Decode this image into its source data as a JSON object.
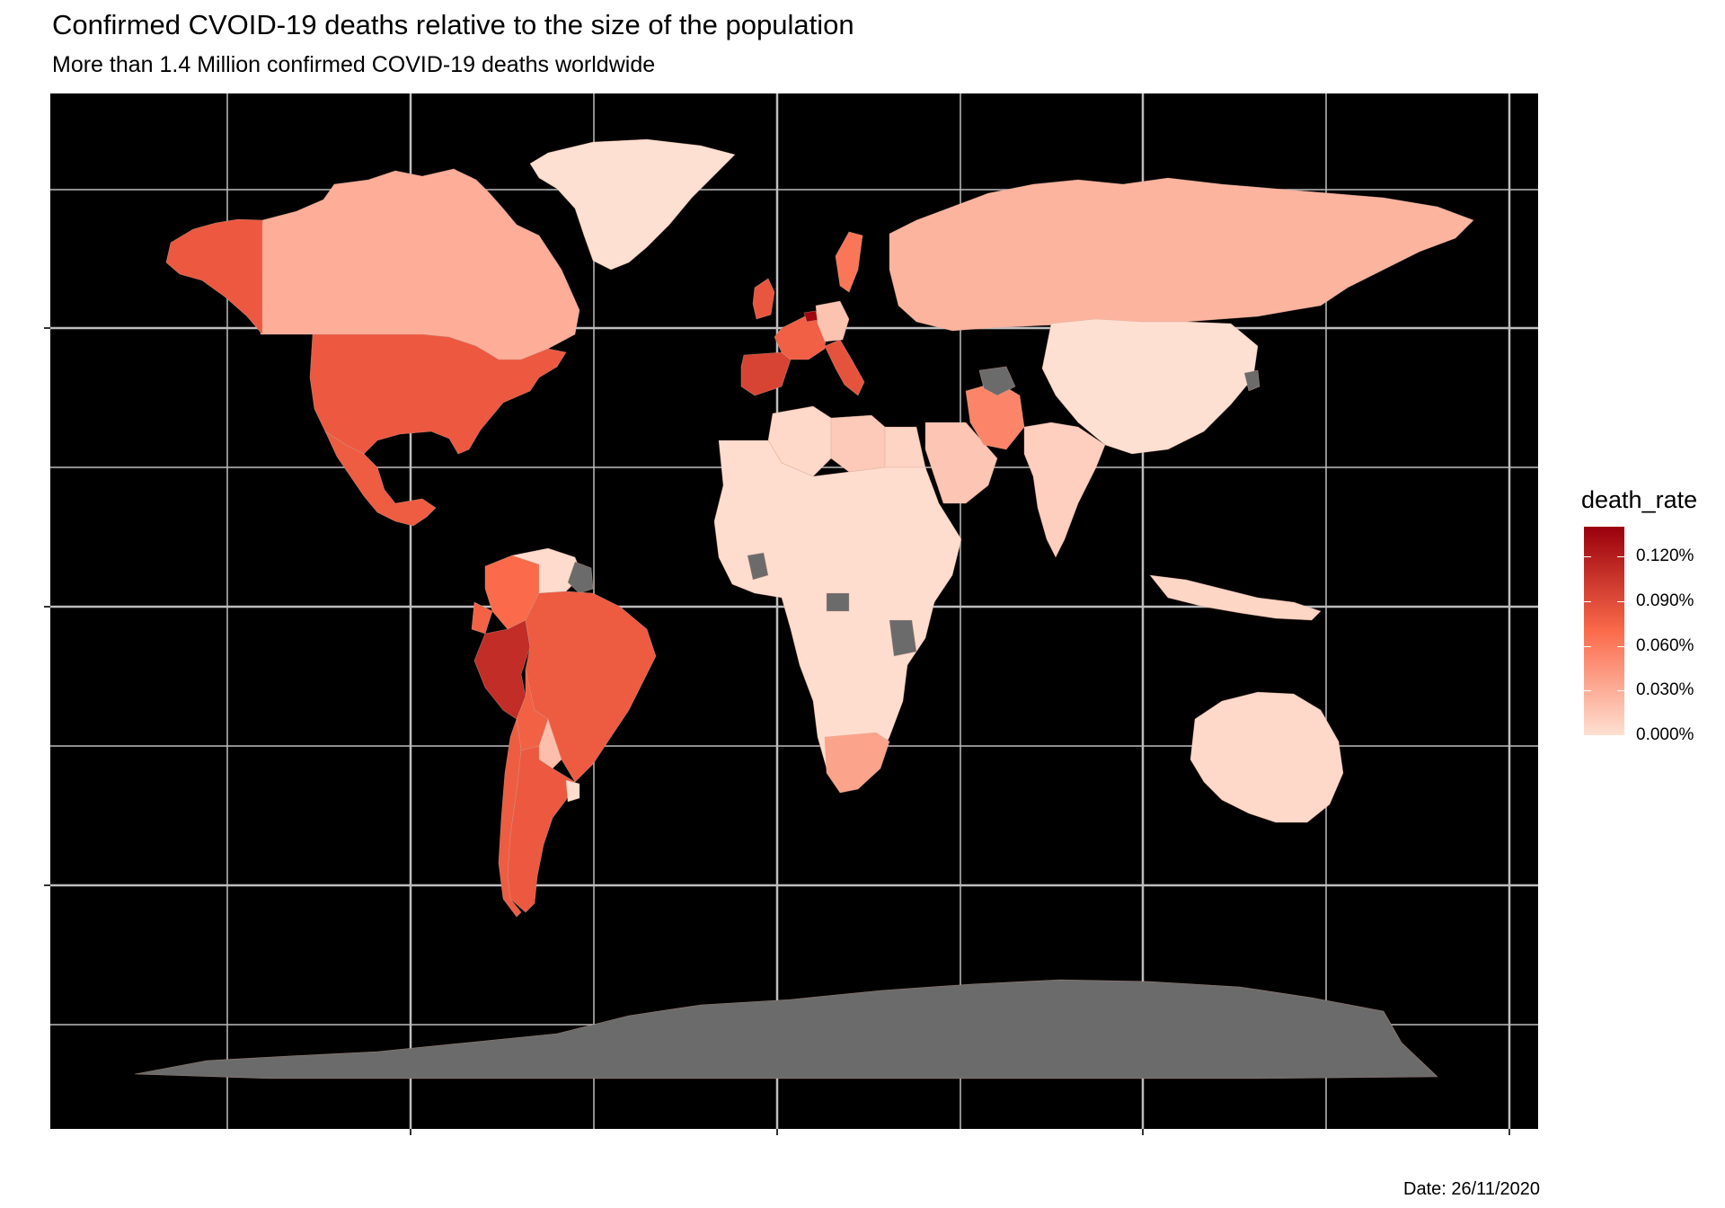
{
  "title": "Confirmed CVOID-19 deaths relative to the size of the population",
  "subtitle": "More than 1.4 Million confirmed COVID-19 deaths worldwide",
  "caption": "Date: 26/11/2020",
  "colors": {
    "panel_background": "#000000",
    "grid": "#bdbdbd",
    "missing_data": "#6b6b6b",
    "scale_low": "#fee0d2",
    "scale_mid": "#fb6a4a",
    "scale_high": "#99000d"
  },
  "legend": {
    "title": "death_rate",
    "ticks": [
      {
        "label": "0.120%",
        "value": 0.12
      },
      {
        "label": "0.090%",
        "value": 0.09
      },
      {
        "label": "0.060%",
        "value": 0.06
      },
      {
        "label": "0.030%",
        "value": 0.03
      },
      {
        "label": "0.000%",
        "value": 0.0
      }
    ],
    "max": 0.14
  },
  "chart_data": {
    "type": "choropleth",
    "fill_variable": "death_rate",
    "units": "percent of population",
    "scale": {
      "min": 0.0,
      "max": 0.14
    },
    "regions_no_data": [
      "Antarctica",
      "Turkmenistan",
      "North Korea",
      "Tanzania",
      "Central African Republic",
      "Côte d'Ivoire",
      "Guyana"
    ],
    "regions": [
      {
        "name": "United States",
        "death_rate": 0.081
      },
      {
        "name": "Canada",
        "death_rate": 0.03
      },
      {
        "name": "Alaska",
        "death_rate": 0.081
      },
      {
        "name": "Greenland",
        "death_rate": 0.0
      },
      {
        "name": "Mexico",
        "death_rate": 0.079
      },
      {
        "name": "Brazil",
        "death_rate": 0.08
      },
      {
        "name": "Peru",
        "death_rate": 0.11
      },
      {
        "name": "Colombia",
        "death_rate": 0.07
      },
      {
        "name": "Argentina",
        "death_rate": 0.081
      },
      {
        "name": "Chile",
        "death_rate": 0.079
      },
      {
        "name": "Bolivia",
        "death_rate": 0.076
      },
      {
        "name": "Ecuador",
        "death_rate": 0.075
      },
      {
        "name": "Venezuela",
        "death_rate": 0.003
      },
      {
        "name": "Paraguay",
        "death_rate": 0.02
      },
      {
        "name": "Uruguay",
        "death_rate": 0.002
      },
      {
        "name": "Spain",
        "death_rate": 0.095
      },
      {
        "name": "United Kingdom",
        "death_rate": 0.083
      },
      {
        "name": "France",
        "death_rate": 0.077
      },
      {
        "name": "Italy",
        "death_rate": 0.085
      },
      {
        "name": "Belgium",
        "death_rate": 0.136
      },
      {
        "name": "Sweden",
        "death_rate": 0.063
      },
      {
        "name": "Germany",
        "death_rate": 0.017
      },
      {
        "name": "Russia",
        "death_rate": 0.026
      },
      {
        "name": "Iran",
        "death_rate": 0.054
      },
      {
        "name": "China",
        "death_rate": 0.0
      },
      {
        "name": "India",
        "death_rate": 0.01
      },
      {
        "name": "Saudi Arabia",
        "death_rate": 0.016
      },
      {
        "name": "South Africa",
        "death_rate": 0.036
      },
      {
        "name": "Australia",
        "death_rate": 0.004
      },
      {
        "name": "Indonesia",
        "death_rate": 0.006
      },
      {
        "name": "Algeria",
        "death_rate": 0.005
      },
      {
        "name": "Libya",
        "death_rate": 0.013
      },
      {
        "name": "Egypt",
        "death_rate": 0.007
      }
    ]
  }
}
